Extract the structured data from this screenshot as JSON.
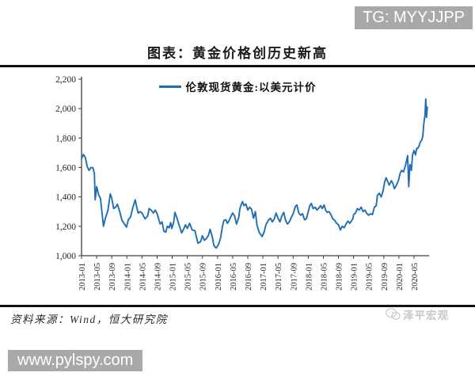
{
  "header": {
    "tg_badge": "TG: MYYJJPP",
    "title": "图表：黄金价格创历史新高"
  },
  "legend": {
    "label": "伦敦现货黄金:以美元计价"
  },
  "footer": {
    "source": "资料来源：Wind，恒大研究院",
    "watermark": "泽平宏观",
    "url": "www.pylspy.com"
  },
  "colors": {
    "line": "#1f6eb4",
    "axis": "#404040",
    "tick_text": "#262626",
    "badge_bg": "#a9a9a9",
    "badge_text": "#ffffff",
    "watermark": "#c8c8c8",
    "rule": "#111111"
  },
  "chart_data": {
    "type": "line",
    "title": "黄金价格创历史新高",
    "xlabel": "",
    "ylabel": "",
    "x_unit": "months since 2013-01 (0 = 2013-01, fractional = intra-month)",
    "ylim": [
      1000,
      2200
    ],
    "ytick_step": 200,
    "ytick_labels": [
      "1,000",
      "1,200",
      "1,400",
      "1,600",
      "1,800",
      "2,000",
      "2,200"
    ],
    "xtick_month_step": 4,
    "xtick_labels": [
      "2013-01",
      "2013-05",
      "2013-09",
      "2014-01",
      "2014-05",
      "2014-09",
      "2015-01",
      "2015-05",
      "2015-09",
      "2016-01",
      "2016-05",
      "2016-09",
      "2017-01",
      "2017-05",
      "2017-09",
      "2018-01",
      "2018-05",
      "2018-09",
      "2019-01",
      "2019-05",
      "2019-09",
      "2020-01",
      "2020-05"
    ],
    "grid": false,
    "legend_position": "top-center",
    "series": [
      {
        "name": "伦敦现货黄金:以美元计价",
        "unit": "USD/oz",
        "points": [
          [
            0,
            1660
          ],
          [
            0.5,
            1688
          ],
          [
            1,
            1667
          ],
          [
            1.5,
            1605
          ],
          [
            2,
            1580
          ],
          [
            2.5,
            1600
          ],
          [
            3,
            1598
          ],
          [
            3.4,
            1560
          ],
          [
            3.6,
            1380
          ],
          [
            4,
            1470
          ],
          [
            4.5,
            1415
          ],
          [
            5,
            1390
          ],
          [
            5.8,
            1200
          ],
          [
            6.3,
            1255
          ],
          [
            7,
            1310
          ],
          [
            7.6,
            1420
          ],
          [
            8,
            1390
          ],
          [
            8.5,
            1320
          ],
          [
            9,
            1330
          ],
          [
            9.5,
            1350
          ],
          [
            10,
            1310
          ],
          [
            10.7,
            1240
          ],
          [
            11,
            1230
          ],
          [
            11.9,
            1195
          ],
          [
            12.4,
            1245
          ],
          [
            13,
            1265
          ],
          [
            13.6,
            1330
          ],
          [
            14.2,
            1380
          ],
          [
            14.6,
            1330
          ],
          [
            15,
            1290
          ],
          [
            15.5,
            1300
          ],
          [
            16,
            1290
          ],
          [
            16.8,
            1250
          ],
          [
            17.5,
            1270
          ],
          [
            17.9,
            1320
          ],
          [
            18.4,
            1310
          ],
          [
            19,
            1290
          ],
          [
            19.5,
            1310
          ],
          [
            20,
            1285
          ],
          [
            20.8,
            1215
          ],
          [
            21.3,
            1230
          ],
          [
            21.8,
            1165
          ],
          [
            22.3,
            1160
          ],
          [
            22.7,
            1200
          ],
          [
            23.2,
            1190
          ],
          [
            23.6,
            1225
          ],
          [
            23.9,
            1185
          ],
          [
            24.4,
            1230
          ],
          [
            24.7,
            1295
          ],
          [
            25.2,
            1260
          ],
          [
            25.8,
            1210
          ],
          [
            26.5,
            1155
          ],
          [
            27,
            1180
          ],
          [
            27.5,
            1210
          ],
          [
            28,
            1185
          ],
          [
            28.6,
            1220
          ],
          [
            29.3,
            1175
          ],
          [
            30,
            1170
          ],
          [
            30.8,
            1085
          ],
          [
            31.5,
            1095
          ],
          [
            32,
            1135
          ],
          [
            32.5,
            1105
          ],
          [
            33,
            1115
          ],
          [
            33.6,
            1140
          ],
          [
            34,
            1180
          ],
          [
            34.6,
            1130
          ],
          [
            35,
            1070
          ],
          [
            35.6,
            1052
          ],
          [
            35.9,
            1062
          ],
          [
            36.3,
            1080
          ],
          [
            36.8,
            1120
          ],
          [
            37.3,
            1200
          ],
          [
            37.7,
            1240
          ],
          [
            38.2,
            1245
          ],
          [
            38.6,
            1220
          ],
          [
            39,
            1235
          ],
          [
            39.5,
            1265
          ],
          [
            40,
            1290
          ],
          [
            40.5,
            1270
          ],
          [
            41,
            1215
          ],
          [
            41.6,
            1260
          ],
          [
            41.9,
            1320
          ],
          [
            42.3,
            1350
          ],
          [
            42.6,
            1368
          ],
          [
            43,
            1340
          ],
          [
            43.5,
            1352
          ],
          [
            44,
            1310
          ],
          [
            44.5,
            1330
          ],
          [
            45,
            1315
          ],
          [
            45.5,
            1255
          ],
          [
            46,
            1300
          ],
          [
            46.4,
            1210
          ],
          [
            47,
            1160
          ],
          [
            47.8,
            1130
          ],
          [
            48.3,
            1160
          ],
          [
            48.8,
            1210
          ],
          [
            49.4,
            1240
          ],
          [
            50,
            1255
          ],
          [
            50.5,
            1230
          ],
          [
            51,
            1250
          ],
          [
            51.5,
            1290
          ],
          [
            52,
            1255
          ],
          [
            52.5,
            1230
          ],
          [
            53,
            1270
          ],
          [
            53.5,
            1295
          ],
          [
            54,
            1240
          ],
          [
            54.5,
            1215
          ],
          [
            55,
            1230
          ],
          [
            55.5,
            1260
          ],
          [
            56,
            1285
          ],
          [
            56.6,
            1335
          ],
          [
            57,
            1345
          ],
          [
            57.5,
            1290
          ],
          [
            58,
            1275
          ],
          [
            58.5,
            1285
          ],
          [
            59,
            1245
          ],
          [
            59.5,
            1250
          ],
          [
            59.9,
            1290
          ],
          [
            60.4,
            1340
          ],
          [
            60.8,
            1355
          ],
          [
            61.3,
            1320
          ],
          [
            61.8,
            1330
          ],
          [
            62.3,
            1310
          ],
          [
            62.8,
            1325
          ],
          [
            63.3,
            1340
          ],
          [
            63.7,
            1320
          ],
          [
            64.2,
            1345
          ],
          [
            64.6,
            1310
          ],
          [
            65,
            1295
          ],
          [
            65.5,
            1300
          ],
          [
            66,
            1280
          ],
          [
            66.5,
            1250
          ],
          [
            67,
            1240
          ],
          [
            67.5,
            1220
          ],
          [
            68,
            1210
          ],
          [
            68.5,
            1175
          ],
          [
            69,
            1200
          ],
          [
            69.5,
            1190
          ],
          [
            70,
            1215
          ],
          [
            70.5,
            1235
          ],
          [
            71,
            1220
          ],
          [
            71.8,
            1250
          ],
          [
            72,
            1280
          ],
          [
            72.5,
            1290
          ],
          [
            73,
            1320
          ],
          [
            73.5,
            1310
          ],
          [
            74,
            1330
          ],
          [
            74.5,
            1300
          ],
          [
            75,
            1310
          ],
          [
            75.4,
            1290
          ],
          [
            76,
            1275
          ],
          [
            76.5,
            1285
          ],
          [
            77,
            1280
          ],
          [
            77.5,
            1330
          ],
          [
            78,
            1340
          ],
          [
            78.3,
            1410
          ],
          [
            78.8,
            1425
          ],
          [
            79.3,
            1400
          ],
          [
            79.8,
            1440
          ],
          [
            80.2,
            1500
          ],
          [
            80.6,
            1530
          ],
          [
            81,
            1505
          ],
          [
            81.4,
            1480
          ],
          [
            82,
            1510
          ],
          [
            82.4,
            1490
          ],
          [
            82.8,
            1455
          ],
          [
            83.3,
            1478
          ],
          [
            83.9,
            1515
          ],
          [
            84.3,
            1560
          ],
          [
            84.7,
            1580
          ],
          [
            85.2,
            1570
          ],
          [
            85.7,
            1610
          ],
          [
            86,
            1645
          ],
          [
            86.3,
            1680
          ],
          [
            86.6,
            1470
          ],
          [
            86.9,
            1620
          ],
          [
            87.3,
            1580
          ],
          [
            87.6,
            1685
          ],
          [
            88,
            1715
          ],
          [
            88.4,
            1685
          ],
          [
            88.7,
            1730
          ],
          [
            89,
            1730
          ],
          [
            89.3,
            1745
          ],
          [
            89.6,
            1770
          ],
          [
            90,
            1785
          ],
          [
            90.3,
            1810
          ],
          [
            90.6,
            1900
          ],
          [
            90.9,
            1960
          ],
          [
            91.1,
            2065
          ],
          [
            91.3,
            1940
          ],
          [
            91.5,
            2010
          ]
        ]
      }
    ]
  }
}
